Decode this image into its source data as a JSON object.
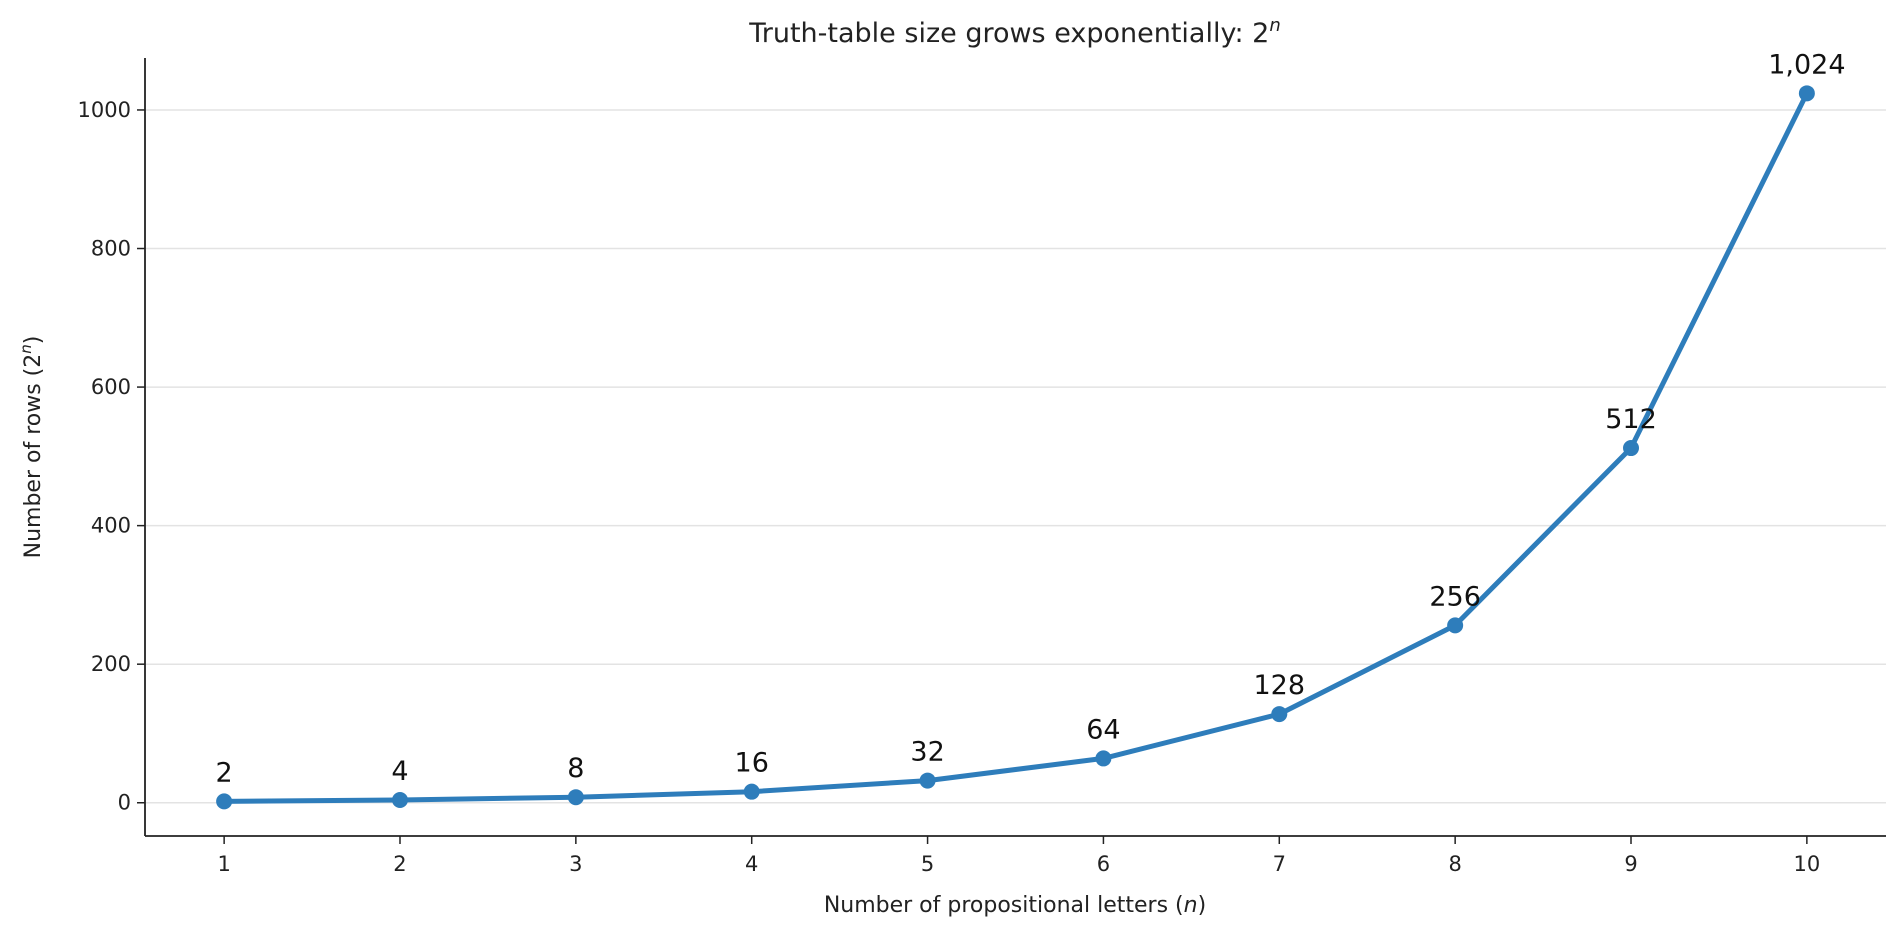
{
  "chart_data": {
    "type": "line",
    "title": "Truth-table size grows exponentially: 2",
    "title_superscript": "n",
    "xlabel": "Number of propositional letters (",
    "xlabel_var": "n",
    "xlabel_end": ")",
    "ylabel": "Number of rows (2",
    "ylabel_superscript": "n",
    "ylabel_end": ")",
    "x": [
      1,
      2,
      3,
      4,
      5,
      6,
      7,
      8,
      9,
      10
    ],
    "series": [
      {
        "values": [
          2,
          4,
          8,
          16,
          32,
          64,
          128,
          256,
          512,
          1024
        ],
        "data_labels": [
          "2",
          "4",
          "8",
          "16",
          "32",
          "64",
          "128",
          "256",
          "512",
          "1,024"
        ],
        "color": "#2e7dbb"
      }
    ],
    "xlim": [
      0.55,
      10.45
    ],
    "ylim": [
      -48,
      1075
    ],
    "xticks": [
      1,
      2,
      3,
      4,
      5,
      6,
      7,
      8,
      9,
      10
    ],
    "yticks": [
      0,
      200,
      400,
      600,
      800,
      1000
    ],
    "grid": "horizontal",
    "legend": "none",
    "colors": {
      "grid": "#e3e3e3",
      "axis": "#222222"
    }
  }
}
